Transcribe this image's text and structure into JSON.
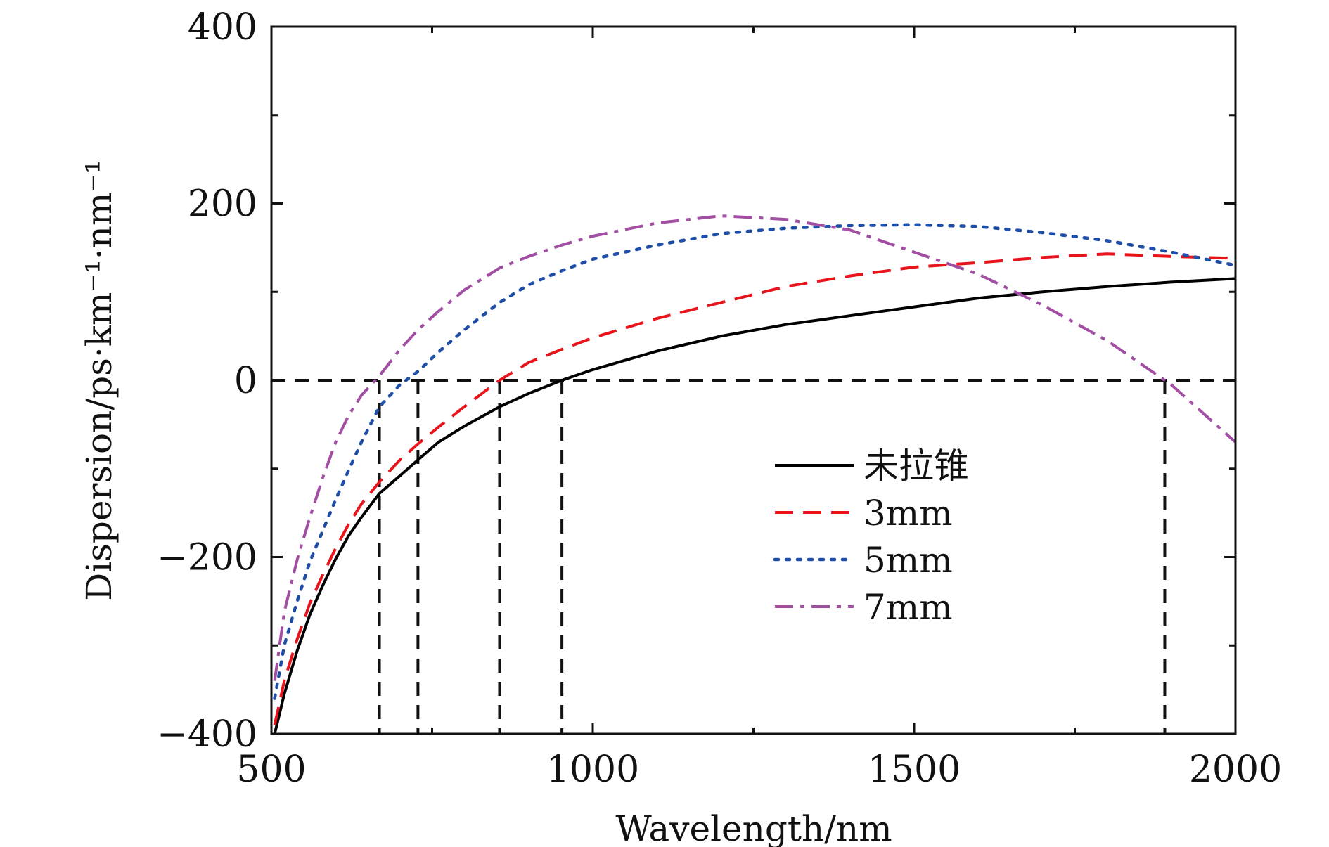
{
  "chart_data": {
    "type": "line",
    "title": "",
    "xlabel": "Wavelength/nm",
    "ylabel": "Dispersion/ps·km⁻¹·nm⁻¹",
    "xlim": [
      500,
      2000
    ],
    "ylim": [
      -400,
      400
    ],
    "xticks": [
      500,
      1000,
      1500,
      2000
    ],
    "xtick_labels": [
      "500",
      "1000",
      "1500",
      "2000"
    ],
    "yticks": [
      -400,
      -200,
      0,
      200,
      400
    ],
    "ytick_labels": [
      "−400",
      "−200",
      "0",
      "200",
      "400"
    ],
    "legend_position": "right-middle",
    "zero_line": 0,
    "zero_crossings": [
      668,
      728,
      855,
      952,
      1890
    ],
    "series": [
      {
        "name": "未拉锥",
        "style": "solid",
        "color": "#000000",
        "x": [
          505,
          520,
          540,
          560,
          580,
          600,
          620,
          640,
          668,
          700,
          728,
          760,
          800,
          855,
          900,
          952,
          1000,
          1100,
          1200,
          1300,
          1400,
          1500,
          1600,
          1700,
          1800,
          1900,
          2000
        ],
        "y": [
          -400,
          -355,
          -306,
          -265,
          -232,
          -202,
          -176,
          -155,
          -128,
          -108,
          -90,
          -70,
          -52,
          -30,
          -15,
          0,
          12,
          33,
          50,
          63,
          73,
          83,
          93,
          100,
          106,
          111,
          115
        ]
      },
      {
        "name": "3mm",
        "style": "dashed",
        "color": "#e8141c",
        "x": [
          505,
          520,
          540,
          560,
          580,
          600,
          620,
          640,
          668,
          700,
          728,
          760,
          800,
          855,
          900,
          952,
          1000,
          1100,
          1200,
          1300,
          1400,
          1500,
          1600,
          1700,
          1800,
          1900,
          2000
        ],
        "y": [
          -390,
          -340,
          -293,
          -252,
          -220,
          -190,
          -163,
          -140,
          -115,
          -90,
          -72,
          -53,
          -30,
          0,
          20,
          35,
          48,
          70,
          88,
          106,
          118,
          128,
          133,
          139,
          143,
          140,
          138
        ]
      },
      {
        "name": "5mm",
        "style": "dotted",
        "color": "#1f4ea8",
        "x": [
          505,
          520,
          540,
          560,
          580,
          600,
          620,
          640,
          668,
          700,
          728,
          760,
          800,
          855,
          900,
          952,
          1000,
          1100,
          1200,
          1300,
          1400,
          1500,
          1600,
          1700,
          1800,
          1900,
          2000
        ],
        "y": [
          -360,
          -300,
          -250,
          -205,
          -170,
          -135,
          -102,
          -70,
          -30,
          -5,
          10,
          32,
          57,
          88,
          108,
          124,
          137,
          153,
          166,
          172,
          175,
          176,
          174,
          167,
          158,
          145,
          130
        ]
      },
      {
        "name": "7mm",
        "style": "dashdot",
        "color": "#a14ea3",
        "x": [
          505,
          520,
          540,
          560,
          580,
          600,
          620,
          640,
          668,
          700,
          728,
          760,
          800,
          855,
          900,
          952,
          1000,
          1100,
          1200,
          1300,
          1400,
          1500,
          1600,
          1700,
          1800,
          1900,
          2000
        ],
        "y": [
          -340,
          -262,
          -203,
          -155,
          -110,
          -70,
          -40,
          -17,
          5,
          35,
          57,
          78,
          102,
          127,
          140,
          153,
          163,
          178,
          186,
          182,
          170,
          145,
          120,
          85,
          45,
          -5,
          -70
        ]
      }
    ]
  }
}
